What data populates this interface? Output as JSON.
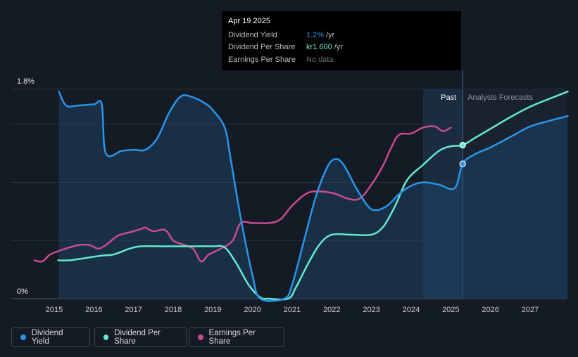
{
  "tooltip": {
    "date": "Apr 19 2025",
    "rows": [
      {
        "label": "Dividend Yield",
        "value": "1.2%",
        "unit": "/yr",
        "color": "#2994e9"
      },
      {
        "label": "Dividend Per Share",
        "value": "kr1.600",
        "unit": "/yr",
        "color": "#64e9cd"
      },
      {
        "label": "Earnings Per Share",
        "value": "No data",
        "unit": "",
        "color": "#6b6f75"
      }
    ]
  },
  "legend": {
    "items": [
      {
        "label": "Dividend Yield",
        "color": "#2994e9"
      },
      {
        "label": "Dividend Per Share",
        "color": "#64e9cd"
      },
      {
        "label": "Earnings Per Share",
        "color": "#c84b8c"
      }
    ]
  },
  "chart_data": {
    "type": "line",
    "y_tick_labels": [
      "1.8%",
      "0%"
    ],
    "ylim": [
      0,
      1.8
    ],
    "x_tick_labels": [
      "2015",
      "2016",
      "2017",
      "2018",
      "2019",
      "2020",
      "2021",
      "2022",
      "2023",
      "2024",
      "2025",
      "2026",
      "2027"
    ],
    "xlim": [
      2014.3,
      2027.95
    ],
    "past_label": "Past",
    "forecast_label": "Analysts Forecasts",
    "forecast_start": 2025.3,
    "highlight_start": 2024.3,
    "grid": true,
    "series": [
      {
        "name": "Dividend Yield",
        "color": "#2994e9",
        "unit": "%",
        "points": [
          [
            2015.12,
            1.78
          ],
          [
            2015.3,
            1.66
          ],
          [
            2015.6,
            1.66
          ],
          [
            2016.0,
            1.67
          ],
          [
            2016.2,
            1.67
          ],
          [
            2016.3,
            1.25
          ],
          [
            2016.7,
            1.27
          ],
          [
            2017.0,
            1.28
          ],
          [
            2017.3,
            1.28
          ],
          [
            2017.6,
            1.38
          ],
          [
            2017.9,
            1.6
          ],
          [
            2018.2,
            1.74
          ],
          [
            2018.5,
            1.73
          ],
          [
            2018.8,
            1.68
          ],
          [
            2019.0,
            1.62
          ],
          [
            2019.3,
            1.47
          ],
          [
            2019.45,
            1.2
          ],
          [
            2019.7,
            0.7
          ],
          [
            2020.0,
            0.2
          ],
          [
            2020.2,
            0.0
          ],
          [
            2020.8,
            0.0
          ],
          [
            2021.0,
            0.12
          ],
          [
            2021.3,
            0.5
          ],
          [
            2021.6,
            0.88
          ],
          [
            2021.9,
            1.14
          ],
          [
            2022.1,
            1.2
          ],
          [
            2022.3,
            1.15
          ],
          [
            2022.6,
            0.96
          ],
          [
            2022.9,
            0.8
          ],
          [
            2023.1,
            0.76
          ],
          [
            2023.4,
            0.8
          ],
          [
            2023.7,
            0.9
          ],
          [
            2024.0,
            0.97
          ],
          [
            2024.3,
            1.0
          ],
          [
            2024.7,
            0.98
          ],
          [
            2025.1,
            0.95
          ],
          [
            2025.3,
            1.16
          ],
          [
            2025.6,
            1.24
          ],
          [
            2026.0,
            1.3
          ],
          [
            2026.5,
            1.39
          ],
          [
            2027.0,
            1.48
          ],
          [
            2027.5,
            1.53
          ],
          [
            2027.95,
            1.57
          ]
        ]
      },
      {
        "name": "Dividend Per Share",
        "color": "#64e9cd",
        "unit": "kr",
        "points": [
          [
            2015.1,
            0.33
          ],
          [
            2015.4,
            0.33
          ],
          [
            2015.8,
            0.35
          ],
          [
            2016.2,
            0.37
          ],
          [
            2016.5,
            0.38
          ],
          [
            2016.9,
            0.43
          ],
          [
            2017.2,
            0.45
          ],
          [
            2017.8,
            0.45
          ],
          [
            2018.5,
            0.45
          ],
          [
            2019.0,
            0.45
          ],
          [
            2019.3,
            0.44
          ],
          [
            2019.6,
            0.3
          ],
          [
            2019.9,
            0.12
          ],
          [
            2020.2,
            0.01
          ],
          [
            2020.4,
            0.0
          ],
          [
            2020.9,
            0.0
          ],
          [
            2021.1,
            0.1
          ],
          [
            2021.4,
            0.3
          ],
          [
            2021.7,
            0.47
          ],
          [
            2022.0,
            0.55
          ],
          [
            2022.5,
            0.55
          ],
          [
            2023.0,
            0.55
          ],
          [
            2023.3,
            0.62
          ],
          [
            2023.6,
            0.8
          ],
          [
            2023.9,
            1.02
          ],
          [
            2024.3,
            1.15
          ],
          [
            2024.7,
            1.27
          ],
          [
            2025.0,
            1.31
          ],
          [
            2025.3,
            1.32
          ],
          [
            2025.6,
            1.38
          ],
          [
            2026.0,
            1.46
          ],
          [
            2026.5,
            1.56
          ],
          [
            2027.0,
            1.65
          ],
          [
            2027.5,
            1.72
          ],
          [
            2027.95,
            1.78
          ]
        ]
      },
      {
        "name": "Earnings Per Share",
        "color": "#c84b8c",
        "unit": "kr",
        "points": [
          [
            2014.5,
            0.33
          ],
          [
            2014.7,
            0.32
          ],
          [
            2014.9,
            0.38
          ],
          [
            2015.2,
            0.42
          ],
          [
            2015.6,
            0.46
          ],
          [
            2015.9,
            0.46
          ],
          [
            2016.1,
            0.43
          ],
          [
            2016.3,
            0.46
          ],
          [
            2016.6,
            0.54
          ],
          [
            2016.9,
            0.57
          ],
          [
            2017.2,
            0.6
          ],
          [
            2017.3,
            0.61
          ],
          [
            2017.5,
            0.58
          ],
          [
            2017.8,
            0.59
          ],
          [
            2018.0,
            0.5
          ],
          [
            2018.2,
            0.47
          ],
          [
            2018.5,
            0.43
          ],
          [
            2018.7,
            0.32
          ],
          [
            2018.9,
            0.38
          ],
          [
            2019.2,
            0.43
          ],
          [
            2019.5,
            0.5
          ],
          [
            2019.7,
            0.65
          ],
          [
            2020.0,
            0.65
          ],
          [
            2020.4,
            0.65
          ],
          [
            2020.7,
            0.68
          ],
          [
            2021.0,
            0.8
          ],
          [
            2021.4,
            0.91
          ],
          [
            2021.8,
            0.92
          ],
          [
            2022.1,
            0.9
          ],
          [
            2022.4,
            0.86
          ],
          [
            2022.7,
            0.86
          ],
          [
            2023.0,
            0.98
          ],
          [
            2023.3,
            1.15
          ],
          [
            2023.5,
            1.3
          ],
          [
            2023.7,
            1.41
          ],
          [
            2024.0,
            1.42
          ],
          [
            2024.3,
            1.47
          ],
          [
            2024.6,
            1.48
          ],
          [
            2024.8,
            1.44
          ],
          [
            2025.0,
            1.47
          ]
        ]
      }
    ],
    "markers": [
      {
        "series": "Dividend Per Share",
        "x": 2025.3,
        "y": 1.32
      },
      {
        "series": "Dividend Yield",
        "x": 2025.3,
        "y": 1.16
      }
    ]
  }
}
